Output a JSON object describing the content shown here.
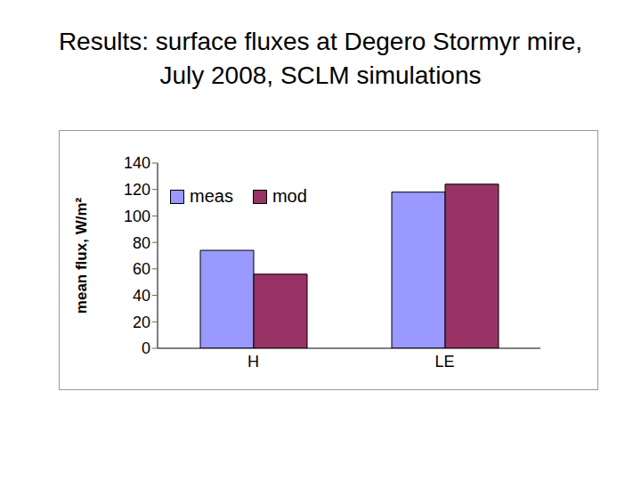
{
  "chart_data": {
    "type": "bar",
    "title": "Results: surface fluxes at Degero Stormyr mire, July 2008, SCLM simulations",
    "y_label": "mean flux, W/m²",
    "categories": [
      "H",
      "LE"
    ],
    "series": [
      {
        "name": "meas",
        "color": "#9999ff",
        "values": [
          74,
          118
        ]
      },
      {
        "name": "mod",
        "color": "#993366",
        "values": [
          56,
          124
        ]
      }
    ],
    "ylim": [
      0,
      140
    ],
    "yticks": [
      0,
      20,
      40,
      60,
      80,
      100,
      120,
      140
    ],
    "grid": false,
    "legend": "upper left"
  }
}
